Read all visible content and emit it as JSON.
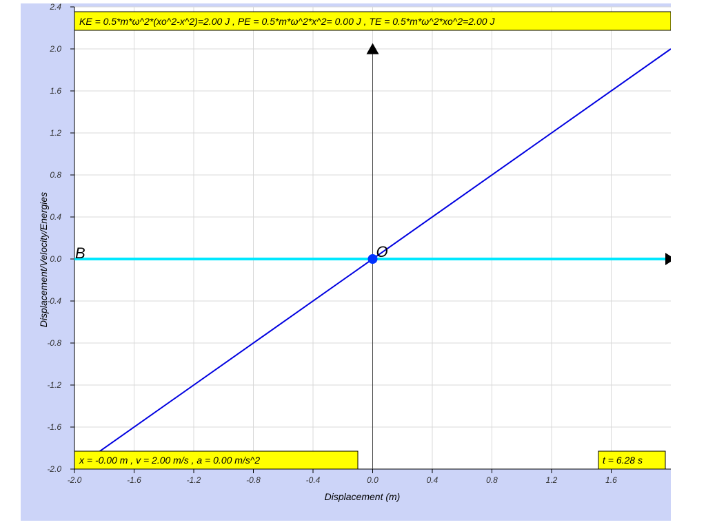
{
  "chart_data": {
    "type": "line",
    "xlabel": "Displacement (m)",
    "ylabel": "Displacement/Velocity/Energies",
    "xlim": [
      -2.0,
      2.0
    ],
    "ylim": [
      -2.0,
      2.4
    ],
    "x_ticks": [
      "-2.0",
      "-1.6",
      "-1.2",
      "-0.8",
      "-0.4",
      "0.0",
      "0.4",
      "0.8",
      "1.2",
      "1.6"
    ],
    "y_ticks": [
      "2.4",
      "2.0",
      "1.6",
      "1.2",
      "0.8",
      "0.4",
      "0.0",
      "-0.4",
      "-0.8",
      "-1.2",
      "-1.6",
      "-2.0"
    ],
    "grid": true,
    "series": [
      {
        "color": "#0000e0",
        "x": [
          -2.0,
          2.0
        ],
        "y": [
          -2.0,
          2.0
        ]
      },
      {
        "color": "#00e8ff",
        "x": [
          -2.0,
          2.0
        ],
        "y": [
          0.0,
          0.0
        ]
      }
    ],
    "point": {
      "label": "O",
      "x": 0.0,
      "y": 0.0,
      "color": "#0033ff"
    },
    "point_b_label": "B",
    "energy_text": "KE = 0.5*m*ω^2*(xo^2-x^2)=2.00 J , PE = 0.5*m*ω^2*x^2= 0.00 J , TE = 0.5*m*ω^2*xo^2=2.00 J",
    "state_text": "x = -0.00 m , v = 2.00 m/s , a = 0.00 m/s^2",
    "time_text": "t = 6.28 s"
  }
}
